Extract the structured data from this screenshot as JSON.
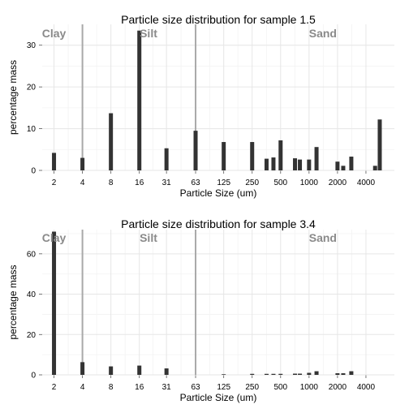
{
  "chart_data": [
    {
      "type": "bar",
      "title": "Particle size distribution for sample 1.5",
      "xlabel": "Particle Size (um)",
      "ylabel": "percentage mass",
      "x_scale": "log2",
      "x_ticks": [
        "2",
        "4",
        "8",
        "16",
        "31",
        "63",
        "125",
        "250",
        "500",
        "1000",
        "2000",
        "4000"
      ],
      "y_ticks": [
        "0",
        "10",
        "20",
        "30"
      ],
      "ylim": [
        0,
        35
      ],
      "xlim": [
        1.5,
        8000
      ],
      "grid": true,
      "region_dividers": [
        4,
        63
      ],
      "regions": [
        {
          "label": "Clay",
          "x": 2.0
        },
        {
          "label": "Silt",
          "x": 20
        },
        {
          "label": "Sand",
          "x": 1400
        }
      ],
      "x": [
        2,
        4,
        8,
        16,
        31,
        63,
        125,
        250,
        355,
        420,
        500,
        710,
        800,
        1000,
        1200,
        2000,
        2300,
        2800,
        5000,
        5600
      ],
      "values": [
        4.2,
        3.0,
        13.7,
        33.5,
        5.3,
        9.5,
        6.8,
        6.8,
        2.8,
        3.1,
        7.2,
        2.9,
        2.6,
        2.6,
        5.6,
        2.1,
        1.1,
        3.3,
        1.1,
        12.2
      ]
    },
    {
      "type": "bar",
      "title": "Particle size distribution for sample 3.4",
      "xlabel": "Particle Size (um)",
      "ylabel": "percentage mass",
      "x_scale": "log2",
      "x_ticks": [
        "2",
        "4",
        "8",
        "16",
        "31",
        "63",
        "125",
        "250",
        "500",
        "1000",
        "2000",
        "4000"
      ],
      "y_ticks": [
        "0",
        "20",
        "40",
        "60"
      ],
      "ylim": [
        0,
        72
      ],
      "xlim": [
        1.5,
        8000
      ],
      "grid": true,
      "region_dividers": [
        4,
        63
      ],
      "regions": [
        {
          "label": "Clay",
          "x": 2.0
        },
        {
          "label": "Silt",
          "x": 20
        },
        {
          "label": "Sand",
          "x": 1400
        }
      ],
      "x": [
        2,
        4,
        8,
        16,
        31,
        125,
        250,
        355,
        420,
        500,
        710,
        800,
        1000,
        1200,
        2000,
        2300,
        2800
      ],
      "values": [
        71,
        6.3,
        4.2,
        4.6,
        3.2,
        0.3,
        0.5,
        0.5,
        0.5,
        0.5,
        0.6,
        0.6,
        1.0,
        1.8,
        0.8,
        0.8,
        1.8
      ]
    }
  ]
}
